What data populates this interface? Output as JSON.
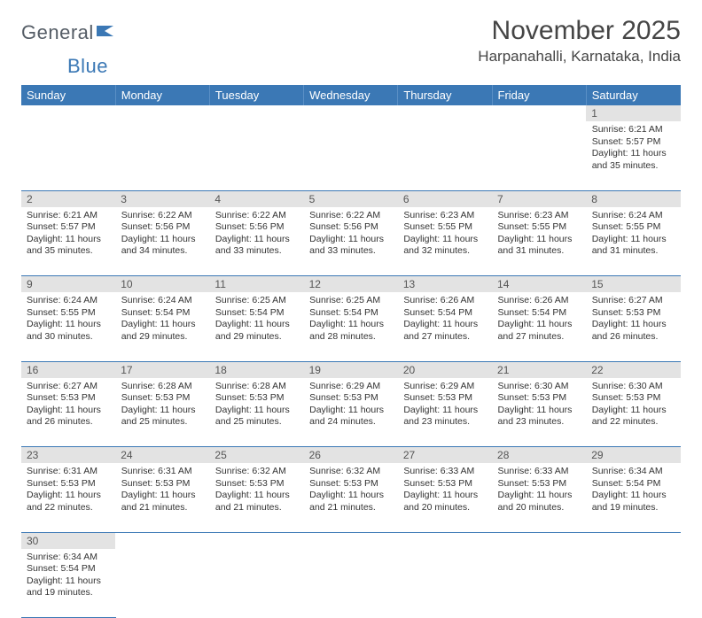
{
  "logo": {
    "part1": "General",
    "part2": "Blue",
    "mark_color": "#3b78b5"
  },
  "title": "November 2025",
  "location": "Harpanahalli, Karnataka, India",
  "colors": {
    "header_bg": "#3b78b5",
    "header_text": "#ffffff",
    "daynum_bg": "#e3e3e3",
    "daynum_text": "#555555",
    "border": "#3b78b5",
    "body_text": "#333333"
  },
  "typography": {
    "title_fontsize": 30,
    "location_fontsize": 17,
    "weekday_fontsize": 13,
    "daynum_fontsize": 12,
    "body_fontsize": 10.5
  },
  "weekdays": [
    "Sunday",
    "Monday",
    "Tuesday",
    "Wednesday",
    "Thursday",
    "Friday",
    "Saturday"
  ],
  "weeks": [
    [
      null,
      null,
      null,
      null,
      null,
      null,
      {
        "n": "1",
        "sr": "6:21 AM",
        "ss": "5:57 PM",
        "dl": "11 hours and 35 minutes."
      }
    ],
    [
      {
        "n": "2",
        "sr": "6:21 AM",
        "ss": "5:57 PM",
        "dl": "11 hours and 35 minutes."
      },
      {
        "n": "3",
        "sr": "6:22 AM",
        "ss": "5:56 PM",
        "dl": "11 hours and 34 minutes."
      },
      {
        "n": "4",
        "sr": "6:22 AM",
        "ss": "5:56 PM",
        "dl": "11 hours and 33 minutes."
      },
      {
        "n": "5",
        "sr": "6:22 AM",
        "ss": "5:56 PM",
        "dl": "11 hours and 33 minutes."
      },
      {
        "n": "6",
        "sr": "6:23 AM",
        "ss": "5:55 PM",
        "dl": "11 hours and 32 minutes."
      },
      {
        "n": "7",
        "sr": "6:23 AM",
        "ss": "5:55 PM",
        "dl": "11 hours and 31 minutes."
      },
      {
        "n": "8",
        "sr": "6:24 AM",
        "ss": "5:55 PM",
        "dl": "11 hours and 31 minutes."
      }
    ],
    [
      {
        "n": "9",
        "sr": "6:24 AM",
        "ss": "5:55 PM",
        "dl": "11 hours and 30 minutes."
      },
      {
        "n": "10",
        "sr": "6:24 AM",
        "ss": "5:54 PM",
        "dl": "11 hours and 29 minutes."
      },
      {
        "n": "11",
        "sr": "6:25 AM",
        "ss": "5:54 PM",
        "dl": "11 hours and 29 minutes."
      },
      {
        "n": "12",
        "sr": "6:25 AM",
        "ss": "5:54 PM",
        "dl": "11 hours and 28 minutes."
      },
      {
        "n": "13",
        "sr": "6:26 AM",
        "ss": "5:54 PM",
        "dl": "11 hours and 27 minutes."
      },
      {
        "n": "14",
        "sr": "6:26 AM",
        "ss": "5:54 PM",
        "dl": "11 hours and 27 minutes."
      },
      {
        "n": "15",
        "sr": "6:27 AM",
        "ss": "5:53 PM",
        "dl": "11 hours and 26 minutes."
      }
    ],
    [
      {
        "n": "16",
        "sr": "6:27 AM",
        "ss": "5:53 PM",
        "dl": "11 hours and 26 minutes."
      },
      {
        "n": "17",
        "sr": "6:28 AM",
        "ss": "5:53 PM",
        "dl": "11 hours and 25 minutes."
      },
      {
        "n": "18",
        "sr": "6:28 AM",
        "ss": "5:53 PM",
        "dl": "11 hours and 25 minutes."
      },
      {
        "n": "19",
        "sr": "6:29 AM",
        "ss": "5:53 PM",
        "dl": "11 hours and 24 minutes."
      },
      {
        "n": "20",
        "sr": "6:29 AM",
        "ss": "5:53 PM",
        "dl": "11 hours and 23 minutes."
      },
      {
        "n": "21",
        "sr": "6:30 AM",
        "ss": "5:53 PM",
        "dl": "11 hours and 23 minutes."
      },
      {
        "n": "22",
        "sr": "6:30 AM",
        "ss": "5:53 PM",
        "dl": "11 hours and 22 minutes."
      }
    ],
    [
      {
        "n": "23",
        "sr": "6:31 AM",
        "ss": "5:53 PM",
        "dl": "11 hours and 22 minutes."
      },
      {
        "n": "24",
        "sr": "6:31 AM",
        "ss": "5:53 PM",
        "dl": "11 hours and 21 minutes."
      },
      {
        "n": "25",
        "sr": "6:32 AM",
        "ss": "5:53 PM",
        "dl": "11 hours and 21 minutes."
      },
      {
        "n": "26",
        "sr": "6:32 AM",
        "ss": "5:53 PM",
        "dl": "11 hours and 21 minutes."
      },
      {
        "n": "27",
        "sr": "6:33 AM",
        "ss": "5:53 PM",
        "dl": "11 hours and 20 minutes."
      },
      {
        "n": "28",
        "sr": "6:33 AM",
        "ss": "5:53 PM",
        "dl": "11 hours and 20 minutes."
      },
      {
        "n": "29",
        "sr": "6:34 AM",
        "ss": "5:54 PM",
        "dl": "11 hours and 19 minutes."
      }
    ],
    [
      {
        "n": "30",
        "sr": "6:34 AM",
        "ss": "5:54 PM",
        "dl": "11 hours and 19 minutes."
      },
      null,
      null,
      null,
      null,
      null,
      null
    ]
  ],
  "labels": {
    "sunrise": "Sunrise:",
    "sunset": "Sunset:",
    "daylight": "Daylight:"
  }
}
